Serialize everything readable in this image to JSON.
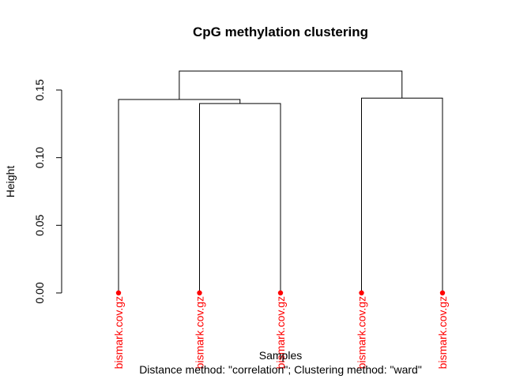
{
  "chart_data": {
    "type": "dendrogram",
    "title": "CpG methylation clustering",
    "ylabel": "Height",
    "xlabel": "Samples",
    "subtitle": "Distance method: \"correlation\"; Clustering method: \"ward\"",
    "ylim": [
      0,
      0.15
    ],
    "yticks": [
      0.0,
      0.05,
      0.1,
      0.15
    ],
    "ytick_labels": [
      "0.00",
      "0.05",
      "0.10",
      "0.15"
    ],
    "grid": false,
    "leaf_color": "#ff0000",
    "line_color": "#000000",
    "leaves": [
      {
        "label": "bismark.cov.gz",
        "position": 1,
        "height": 0
      },
      {
        "label": "bismark.cov.gz",
        "position": 2,
        "height": 0
      },
      {
        "label": "bismark.cov.gz",
        "position": 3,
        "height": 0
      },
      {
        "label": "bismark.cov.gz",
        "position": 4,
        "height": 0
      },
      {
        "label": "bismark.cov.gz",
        "position": 5,
        "height": 0
      }
    ],
    "merges": [
      {
        "left": 2,
        "right": 3,
        "height": 0.14
      },
      {
        "left": 1,
        "right": 2.5,
        "height": 0.143
      },
      {
        "left": 4,
        "right": 5,
        "height": 0.144
      },
      {
        "left": 1.75,
        "right": 4.5,
        "height": 0.164
      }
    ]
  }
}
